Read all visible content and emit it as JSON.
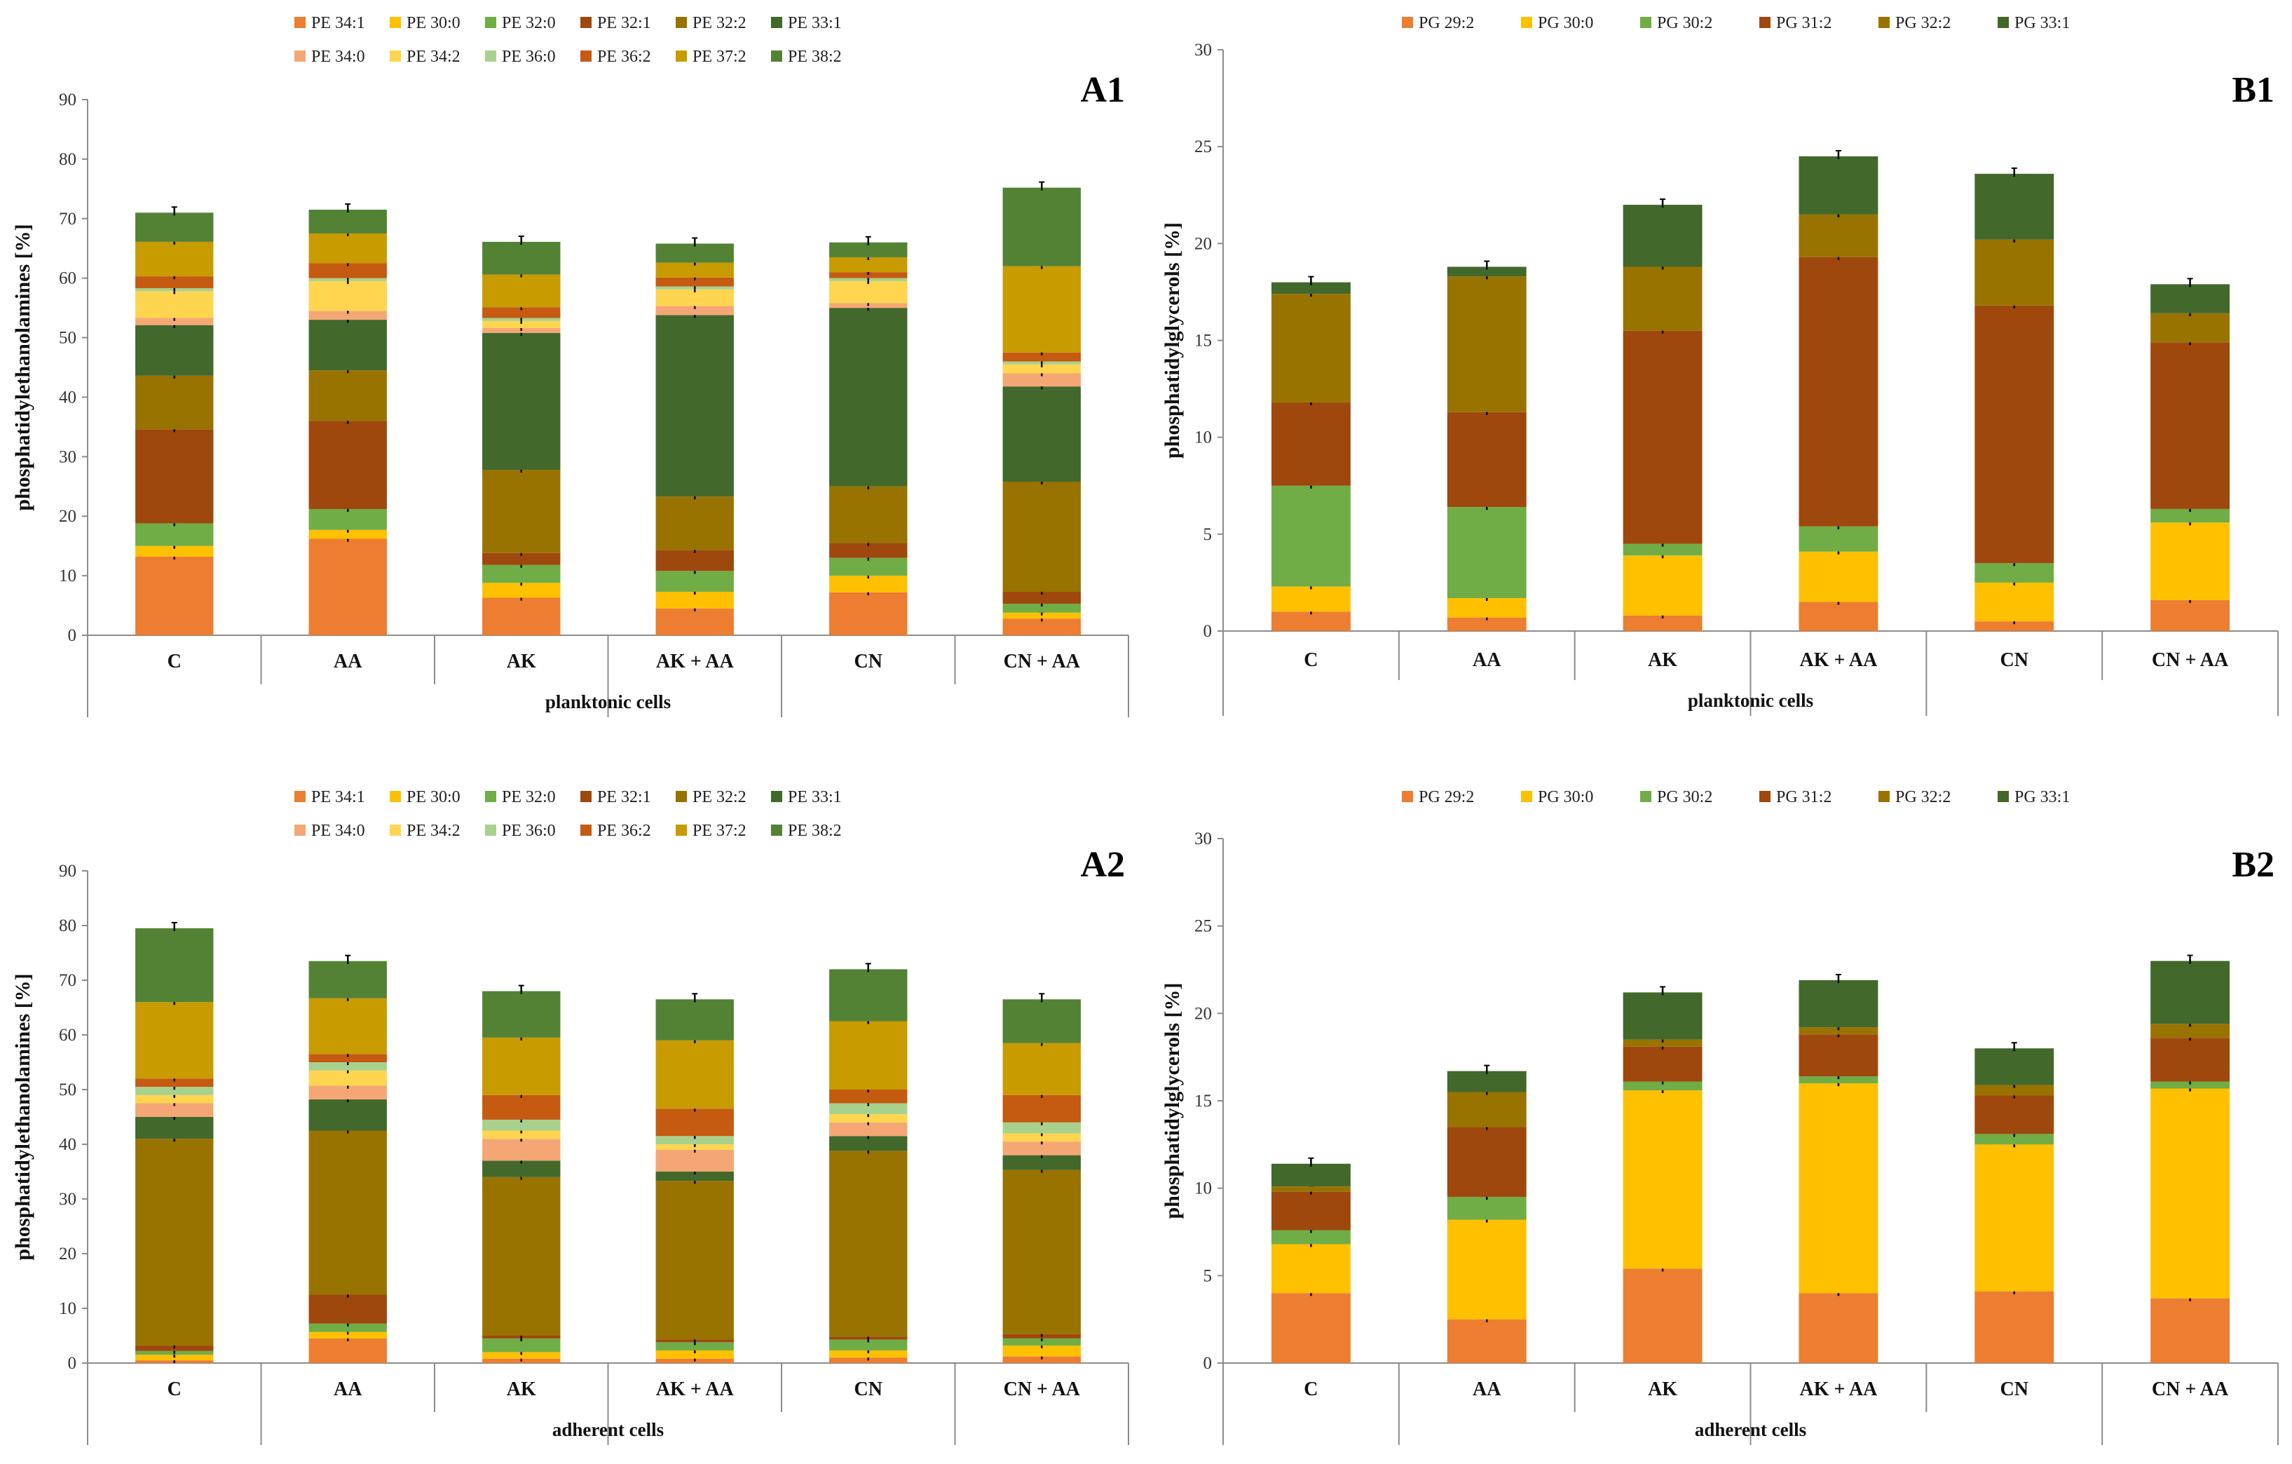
{
  "chart_data": [
    {
      "id": "A1",
      "panel": "A1",
      "type": "bar",
      "stacked": true,
      "ylabel": "phosphatidylethanolamines [%]",
      "xgroup_label": "planktonic cells",
      "ylim": [
        0,
        90
      ],
      "yticks": [
        0,
        10,
        20,
        30,
        40,
        50,
        60,
        70,
        80,
        90
      ],
      "ytick_labels": [
        "0",
        "10",
        "20",
        "30",
        "40",
        "50",
        "60",
        "70",
        "80",
        "90"
      ],
      "categories": [
        "C",
        "AA",
        "AK",
        "AK + AA",
        "CN",
        "CN + AA"
      ],
      "series": [
        {
          "name": "PE 34:1",
          "color": "#ED7D31",
          "values": [
            13.2,
            16.2,
            6.3,
            4.5,
            7.2,
            2.8
          ]
        },
        {
          "name": "PE 30:0",
          "color": "#FFC000",
          "values": [
            1.8,
            1.5,
            2.5,
            2.8,
            2.8,
            1.0
          ]
        },
        {
          "name": "PE 32:0",
          "color": "#70AD47",
          "values": [
            3.8,
            3.5,
            3.0,
            3.5,
            3.0,
            1.5
          ]
        },
        {
          "name": "PE 32:1",
          "color": "#9E480E",
          "values": [
            15.8,
            14.8,
            2.0,
            3.5,
            2.5,
            2.0
          ]
        },
        {
          "name": "PE 32:2",
          "color": "#997300",
          "values": [
            9.0,
            8.5,
            14.0,
            9.0,
            9.5,
            18.5
          ]
        },
        {
          "name": "PE 33:1",
          "color": "#43682B",
          "values": [
            8.5,
            8.5,
            23.0,
            30.5,
            30.0,
            16.0
          ]
        },
        {
          "name": "PE 34:0",
          "color": "#F4A774",
          "values": [
            1.2,
            1.5,
            0.8,
            1.5,
            0.8,
            2.2
          ]
        },
        {
          "name": "PE 34:2",
          "color": "#FFD54F",
          "values": [
            4.5,
            5.0,
            1.2,
            2.8,
            3.7,
            1.5
          ]
        },
        {
          "name": "PE 36:0",
          "color": "#A9D18E",
          "values": [
            0.5,
            0.5,
            0.5,
            0.5,
            0.5,
            0.5
          ]
        },
        {
          "name": "PE 36:2",
          "color": "#C55A11",
          "values": [
            2.0,
            2.5,
            1.8,
            1.5,
            1.0,
            1.5
          ]
        },
        {
          "name": "PE 37:2",
          "color": "#C89B00",
          "values": [
            5.8,
            5.0,
            5.5,
            2.5,
            2.5,
            14.5
          ]
        },
        {
          "name": "PE 38:2",
          "color": "#548235",
          "values": [
            4.9,
            4.0,
            5.5,
            3.2,
            2.5,
            13.2
          ]
        }
      ]
    },
    {
      "id": "B1",
      "panel": "B1",
      "type": "bar",
      "stacked": true,
      "ylabel": "phosphatidylglycerols [%]",
      "xgroup_label": "planktonic cells",
      "ylim": [
        0,
        30
      ],
      "yticks": [
        0,
        5,
        10,
        15,
        20,
        25,
        30
      ],
      "ytick_labels": [
        "0",
        "5",
        "10",
        "15",
        "20",
        "25",
        "30"
      ],
      "categories": [
        "C",
        "AA",
        "AK",
        "AK + AA",
        "CN",
        "CN + AA"
      ],
      "series": [
        {
          "name": "PG 29:2",
          "color": "#ED7D31",
          "values": [
            1.0,
            0.7,
            0.8,
            1.5,
            0.5,
            1.6
          ]
        },
        {
          "name": "PG 30:0",
          "color": "#FFC000",
          "values": [
            1.3,
            1.0,
            3.1,
            2.6,
            2.0,
            4.0
          ]
        },
        {
          "name": "PG 30:2",
          "color": "#70AD47",
          "values": [
            5.2,
            4.7,
            0.6,
            1.3,
            1.0,
            0.7
          ]
        },
        {
          "name": "PG 31:2",
          "color": "#9E480E",
          "values": [
            4.3,
            4.9,
            11.0,
            13.9,
            13.3,
            8.6
          ]
        },
        {
          "name": "PG 32:2",
          "color": "#997300",
          "values": [
            5.6,
            7.0,
            3.3,
            2.2,
            3.4,
            1.5
          ]
        },
        {
          "name": "PG 33:1",
          "color": "#43682B",
          "values": [
            0.6,
            0.5,
            3.2,
            3.0,
            3.4,
            1.5
          ]
        }
      ]
    },
    {
      "id": "A2",
      "panel": "A2",
      "type": "bar",
      "stacked": true,
      "ylabel": "phosphatidylethanolamines [%]",
      "xgroup_label": "adherent cells",
      "ylim": [
        0,
        90
      ],
      "yticks": [
        0,
        10,
        20,
        30,
        40,
        50,
        60,
        70,
        80,
        90
      ],
      "ytick_labels": [
        "0",
        "10",
        "20",
        "30",
        "40",
        "50",
        "60",
        "70",
        "80",
        "90"
      ],
      "categories": [
        "C",
        "AA",
        "AK",
        "AK + AA",
        "CN",
        "CN + AA"
      ],
      "series": [
        {
          "name": "PE 34:1",
          "color": "#ED7D31",
          "values": [
            0.5,
            4.5,
            0.8,
            0.8,
            1.0,
            1.2
          ]
        },
        {
          "name": "PE 30:0",
          "color": "#FFC000",
          "values": [
            1.0,
            1.2,
            1.2,
            1.5,
            1.3,
            2.0
          ]
        },
        {
          "name": "PE 32:0",
          "color": "#70AD47",
          "values": [
            0.7,
            1.5,
            2.5,
            1.5,
            2.0,
            1.3
          ]
        },
        {
          "name": "PE 32:1",
          "color": "#9E480E",
          "values": [
            1.0,
            5.3,
            0.5,
            0.5,
            0.5,
            0.8
          ]
        },
        {
          "name": "PE 32:2",
          "color": "#997300",
          "values": [
            37.8,
            30.0,
            29.0,
            29.0,
            34.0,
            30.0
          ]
        },
        {
          "name": "PE 33:1",
          "color": "#43682B",
          "values": [
            4.0,
            5.7,
            3.0,
            1.7,
            2.7,
            2.7
          ]
        },
        {
          "name": "PE 34:0",
          "color": "#F4A774",
          "values": [
            2.5,
            2.5,
            4.0,
            4.0,
            2.5,
            2.5
          ]
        },
        {
          "name": "PE 34:2",
          "color": "#FFD54F",
          "values": [
            1.5,
            2.8,
            1.5,
            1.0,
            1.5,
            1.5
          ]
        },
        {
          "name": "PE 36:0",
          "color": "#A9D18E",
          "values": [
            1.5,
            1.5,
            2.0,
            1.5,
            2.0,
            2.0
          ]
        },
        {
          "name": "PE 36:2",
          "color": "#C55A11",
          "values": [
            1.5,
            1.5,
            4.5,
            5.0,
            2.5,
            5.0
          ]
        },
        {
          "name": "PE 37:2",
          "color": "#C89B00",
          "values": [
            14.0,
            10.2,
            10.5,
            12.5,
            12.5,
            9.5
          ]
        },
        {
          "name": "PE 38:2",
          "color": "#548235",
          "values": [
            13.5,
            6.8,
            8.5,
            7.5,
            9.5,
            8.0
          ]
        }
      ]
    },
    {
      "id": "B2",
      "panel": "B2",
      "type": "bar",
      "stacked": true,
      "ylabel": "phosphatidylglycerols [%]",
      "xgroup_label": "adherent cells",
      "ylim": [
        0,
        30
      ],
      "yticks": [
        0,
        5,
        10,
        15,
        20,
        25,
        30
      ],
      "ytick_labels": [
        "0",
        "5",
        "10",
        "15",
        "20",
        "25",
        "30"
      ],
      "categories": [
        "C",
        "AA",
        "AK",
        "AK + AA",
        "CN",
        "CN + AA"
      ],
      "series": [
        {
          "name": "PG 29:2",
          "color": "#ED7D31",
          "values": [
            4.0,
            2.5,
            5.4,
            4.0,
            4.1,
            3.7
          ]
        },
        {
          "name": "PG 30:0",
          "color": "#FFC000",
          "values": [
            2.8,
            5.7,
            10.2,
            12.0,
            8.4,
            12.0
          ]
        },
        {
          "name": "PG 30:2",
          "color": "#70AD47",
          "values": [
            0.8,
            1.3,
            0.5,
            0.4,
            0.6,
            0.4
          ]
        },
        {
          "name": "PG 31:2",
          "color": "#9E480E",
          "values": [
            2.2,
            4.0,
            2.0,
            2.4,
            2.2,
            2.5
          ]
        },
        {
          "name": "PG 32:2",
          "color": "#997300",
          "values": [
            0.3,
            2.0,
            0.4,
            0.4,
            0.6,
            0.8
          ]
        },
        {
          "name": "PG 33:1",
          "color": "#43682B",
          "values": [
            1.3,
            1.2,
            2.7,
            2.7,
            2.1,
            3.6
          ]
        }
      ]
    }
  ]
}
